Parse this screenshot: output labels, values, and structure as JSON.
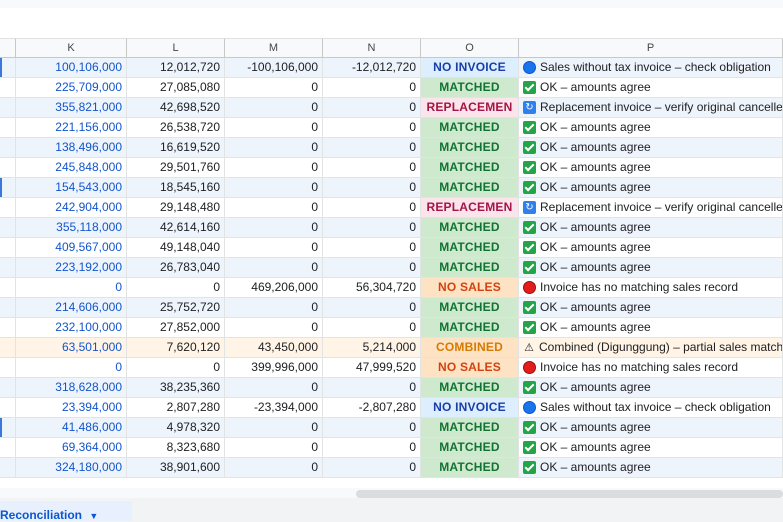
{
  "columns": [
    "K",
    "L",
    "M",
    "N",
    "O",
    "P"
  ],
  "status_styles": {
    "NO INVOICE": {
      "bg": "#ddeeff",
      "color": "#1a3ea8"
    },
    "MATCHED": {
      "bg": "#cfe9cf",
      "color": "#137333"
    },
    "REPLACEMEN": {
      "bg": "#fce4ec",
      "color": "#a31545"
    },
    "NO SALES": {
      "bg": "#fde3c4",
      "color": "#d2440f"
    },
    "COMBINED": {
      "bg": "#fde3c4",
      "color": "#d67a00"
    }
  },
  "rows": [
    {
      "k": "100,106,000",
      "l": "12,012,720",
      "m": "-100,106,000",
      "n": "-12,012,720",
      "o": "NO INVOICE",
      "icon": "blue-circle-icon",
      "p": "Sales without tax invoice – check obligation",
      "tint": "#eef4fc",
      "edge": "#3c78d8"
    },
    {
      "k": "225,709,000",
      "l": "27,085,080",
      "m": "0",
      "n": "0",
      "o": "MATCHED",
      "icon": "check-icon",
      "p": "OK – amounts agree",
      "tint": "#ffffff",
      "edge": ""
    },
    {
      "k": "355,821,000",
      "l": "42,698,520",
      "m": "0",
      "n": "0",
      "o": "REPLACEMEN",
      "icon": "replace-icon",
      "p": "Replacement invoice – verify original cancelle",
      "tint": "#eef4fc",
      "edge": ""
    },
    {
      "k": "221,156,000",
      "l": "26,538,720",
      "m": "0",
      "n": "0",
      "o": "MATCHED",
      "icon": "check-icon",
      "p": "OK – amounts agree",
      "tint": "#ffffff",
      "edge": ""
    },
    {
      "k": "138,496,000",
      "l": "16,619,520",
      "m": "0",
      "n": "0",
      "o": "MATCHED",
      "icon": "check-icon",
      "p": "OK – amounts agree",
      "tint": "#eef4fc",
      "edge": ""
    },
    {
      "k": "245,848,000",
      "l": "29,501,760",
      "m": "0",
      "n": "0",
      "o": "MATCHED",
      "icon": "check-icon",
      "p": "OK – amounts agree",
      "tint": "#ffffff",
      "edge": ""
    },
    {
      "k": "154,543,000",
      "l": "18,545,160",
      "m": "0",
      "n": "0",
      "o": "MATCHED",
      "icon": "check-icon",
      "p": "OK – amounts agree",
      "tint": "#eef4fc",
      "edge": "#3c78d8"
    },
    {
      "k": "242,904,000",
      "l": "29,148,480",
      "m": "0",
      "n": "0",
      "o": "REPLACEMEN",
      "icon": "replace-icon",
      "p": "Replacement invoice – verify original cancelle",
      "tint": "#ffffff",
      "edge": ""
    },
    {
      "k": "355,118,000",
      "l": "42,614,160",
      "m": "0",
      "n": "0",
      "o": "MATCHED",
      "icon": "check-icon",
      "p": "OK – amounts agree",
      "tint": "#eef4fc",
      "edge": ""
    },
    {
      "k": "409,567,000",
      "l": "49,148,040",
      "m": "0",
      "n": "0",
      "o": "MATCHED",
      "icon": "check-icon",
      "p": "OK – amounts agree",
      "tint": "#ffffff",
      "edge": ""
    },
    {
      "k": "223,192,000",
      "l": "26,783,040",
      "m": "0",
      "n": "0",
      "o": "MATCHED",
      "icon": "check-icon",
      "p": "OK – amounts agree",
      "tint": "#eef4fc",
      "edge": ""
    },
    {
      "k": "0",
      "l": "0",
      "m": "469,206,000",
      "n": "56,304,720",
      "o": "NO SALES",
      "icon": "red-circle-icon",
      "p": "Invoice has no matching sales record",
      "tint": "#ffffff",
      "edge": ""
    },
    {
      "k": "214,606,000",
      "l": "25,752,720",
      "m": "0",
      "n": "0",
      "o": "MATCHED",
      "icon": "check-icon",
      "p": "OK – amounts agree",
      "tint": "#eef4fc",
      "edge": ""
    },
    {
      "k": "232,100,000",
      "l": "27,852,000",
      "m": "0",
      "n": "0",
      "o": "MATCHED",
      "icon": "check-icon",
      "p": "OK – amounts agree",
      "tint": "#ffffff",
      "edge": ""
    },
    {
      "k": "63,501,000",
      "l": "7,620,120",
      "m": "43,450,000",
      "n": "5,214,000",
      "o": "COMBINED",
      "icon": "warning-icon",
      "p": "Combined (Digunggung) – partial sales match",
      "tint": "#fff4e5",
      "edge": ""
    },
    {
      "k": "0",
      "l": "0",
      "m": "399,996,000",
      "n": "47,999,520",
      "o": "NO SALES",
      "icon": "red-circle-icon",
      "p": "Invoice has no matching sales record",
      "tint": "#ffffff",
      "edge": ""
    },
    {
      "k": "318,628,000",
      "l": "38,235,360",
      "m": "0",
      "n": "0",
      "o": "MATCHED",
      "icon": "check-icon",
      "p": "OK – amounts agree",
      "tint": "#eef4fc",
      "edge": ""
    },
    {
      "k": "23,394,000",
      "l": "2,807,280",
      "m": "-23,394,000",
      "n": "-2,807,280",
      "o": "NO INVOICE",
      "icon": "blue-circle-icon",
      "p": "Sales without tax invoice – check obligation",
      "tint": "#ffffff",
      "edge": ""
    },
    {
      "k": "41,486,000",
      "l": "4,978,320",
      "m": "0",
      "n": "0",
      "o": "MATCHED",
      "icon": "check-icon",
      "p": "OK – amounts agree",
      "tint": "#eef4fc",
      "edge": "#3c78d8"
    },
    {
      "k": "69,364,000",
      "l": "8,323,680",
      "m": "0",
      "n": "0",
      "o": "MATCHED",
      "icon": "check-icon",
      "p": "OK – amounts agree",
      "tint": "#ffffff",
      "edge": ""
    },
    {
      "k": "324,180,000",
      "l": "38,901,600",
      "m": "0",
      "n": "0",
      "o": "MATCHED",
      "icon": "check-icon",
      "p": "OK – amounts agree",
      "tint": "#eef4fc",
      "edge": ""
    }
  ],
  "sheet_tab": {
    "label": "Reconciliation",
    "arrow": "▼"
  }
}
